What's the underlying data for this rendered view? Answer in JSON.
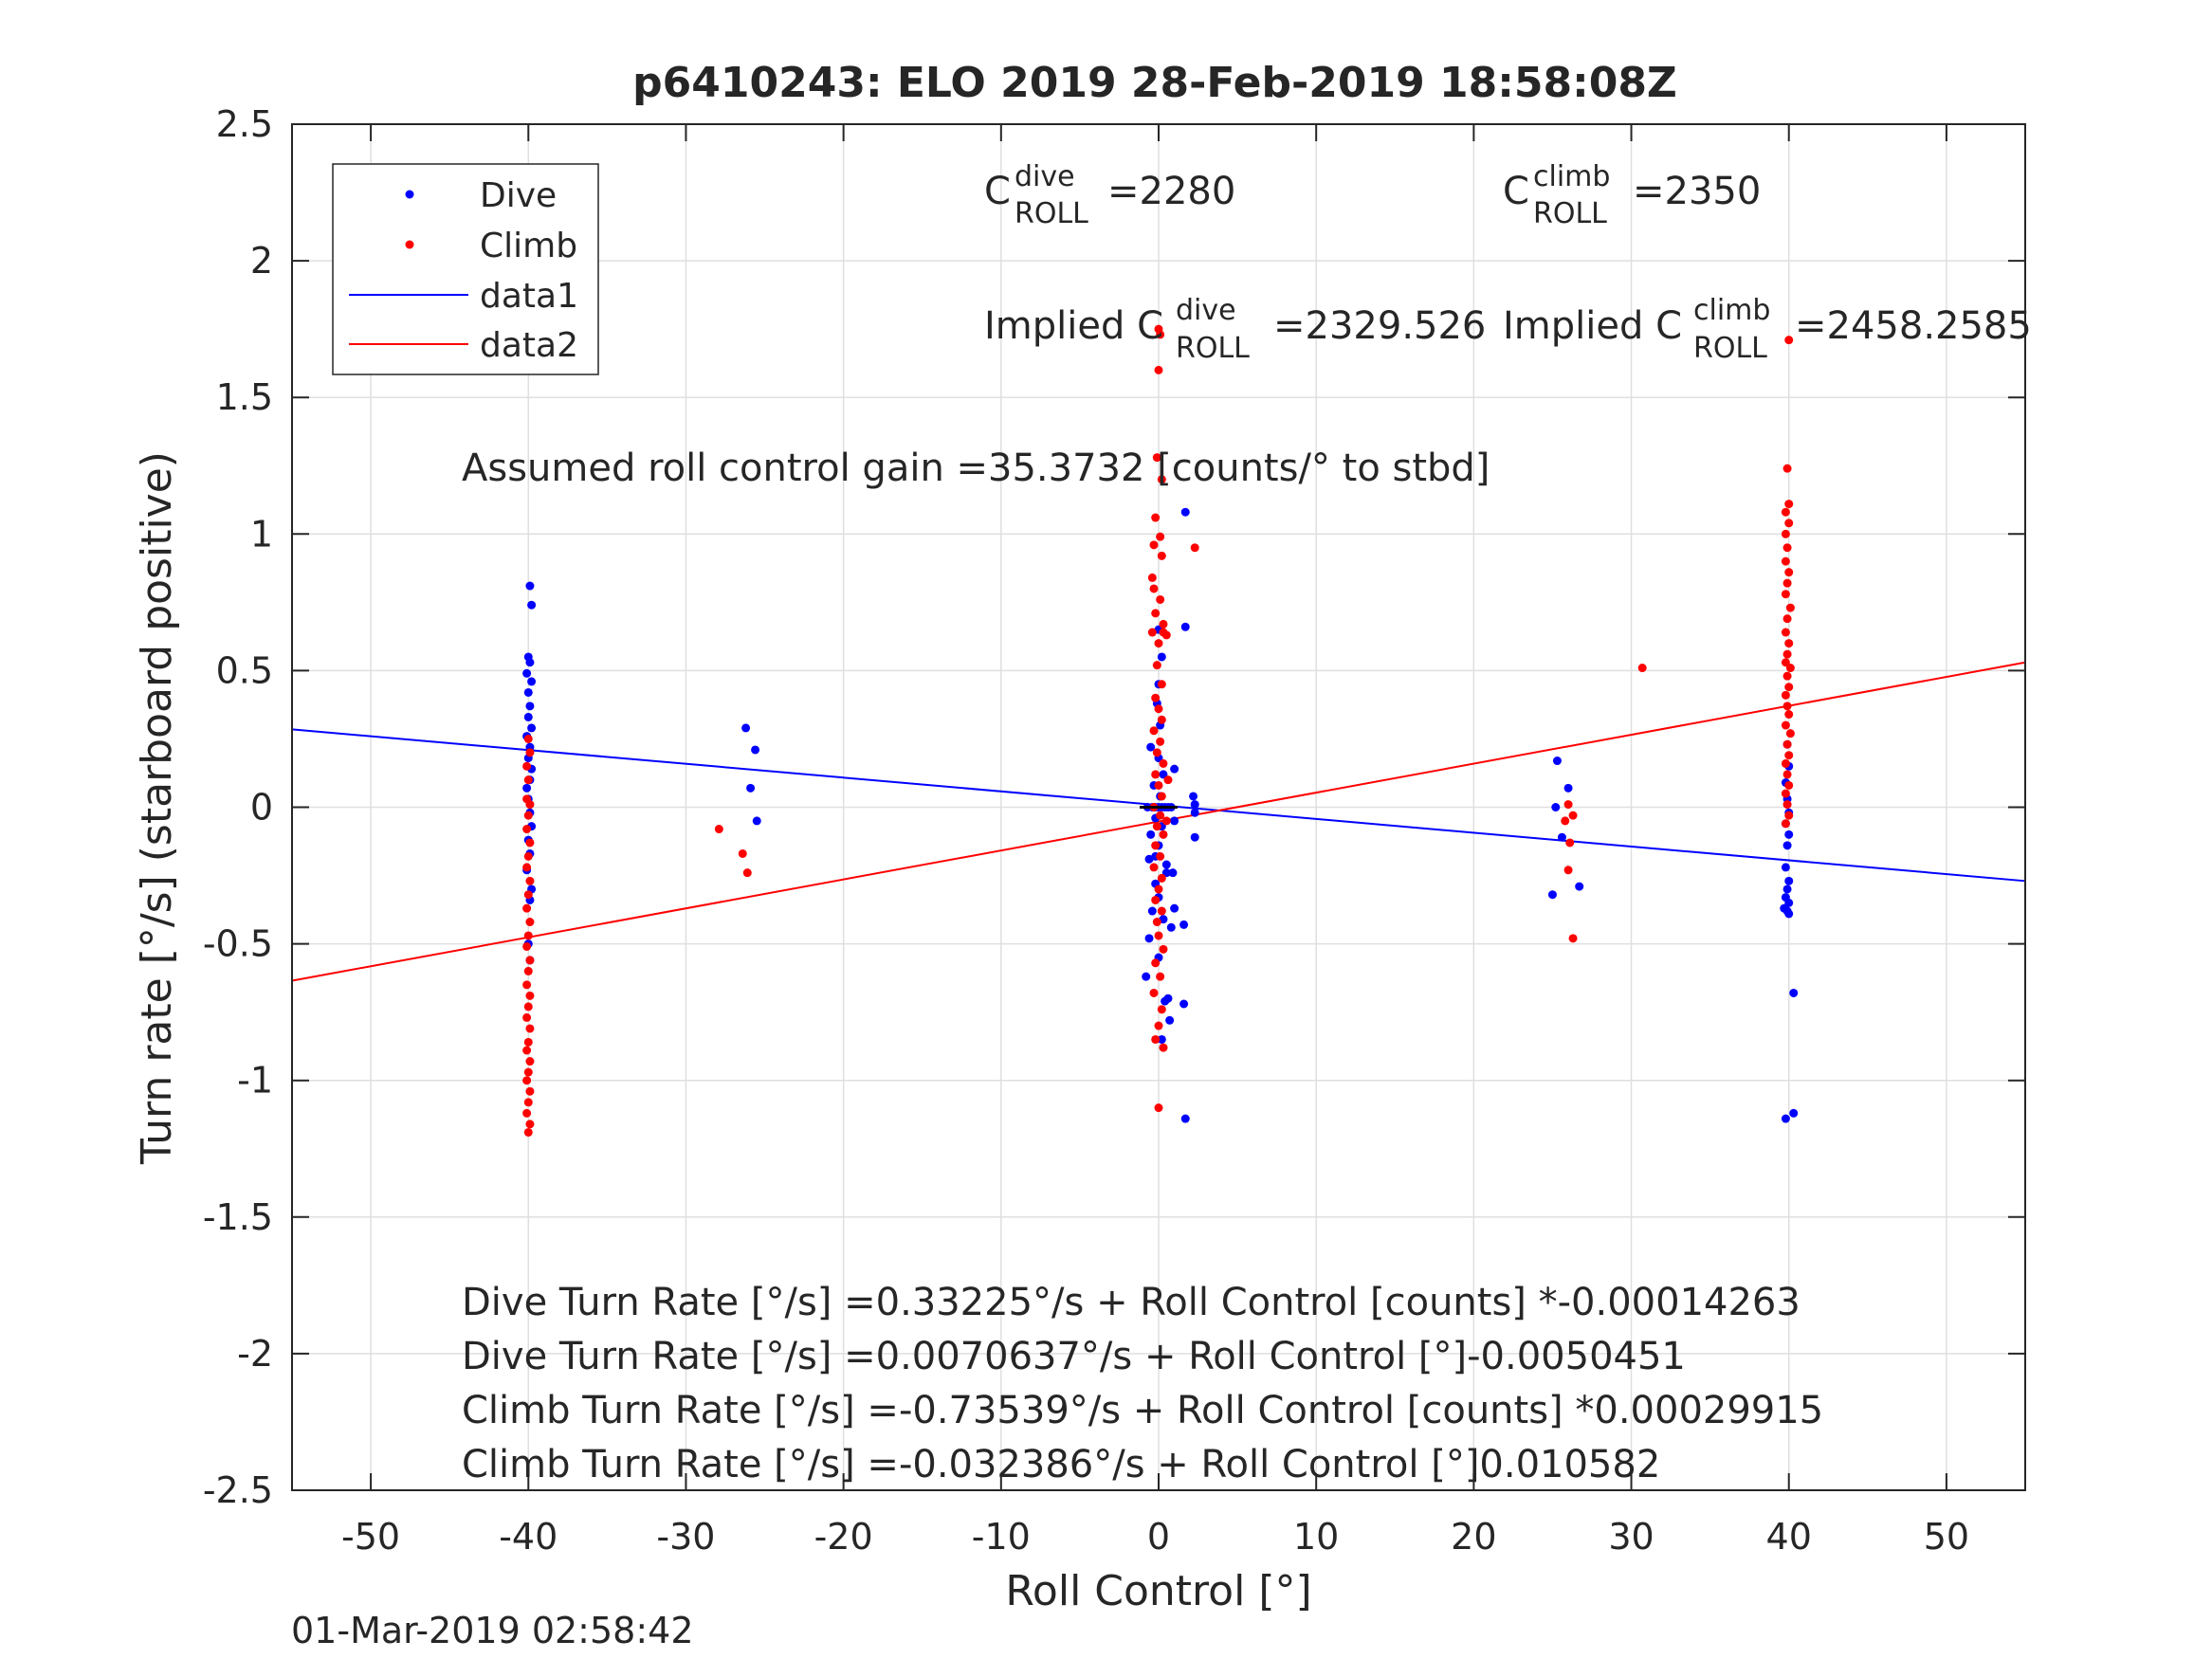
{
  "chart_data": {
    "type": "scatter",
    "title": "p6410243: ELO 2019 28-Feb-2019 18:58:08Z",
    "xlabel": "Roll Control [°]",
    "ylabel": "Turn rate [°/s] (starboard positive)",
    "xlim": [
      -55,
      55
    ],
    "ylim": [
      -2.5,
      2.5
    ],
    "xticks": [
      -50,
      -40,
      -30,
      -20,
      -10,
      0,
      10,
      20,
      30,
      40,
      50
    ],
    "xtick_labels": [
      "-50",
      "-40",
      "-30",
      "-20",
      "-10",
      "0",
      "10",
      "20",
      "30",
      "40",
      "50"
    ],
    "yticks": [
      2.5,
      2,
      1.5,
      1,
      0.5,
      0,
      -0.5,
      -1,
      -1.5,
      -2,
      -2.5
    ],
    "ytick_labels": [
      "2.5",
      "2",
      "1.5",
      "1",
      "0.5",
      "0",
      "-0.5",
      "-1",
      "-1.5",
      "-2",
      "-2.5"
    ],
    "grid": true,
    "legend_position": "top-left",
    "legend": [
      "Dive",
      "Climb",
      "data1",
      "data2"
    ],
    "colors": {
      "dive": "#0000ff",
      "climb": "#ff0000",
      "axis": "#262626",
      "grid": "#dfdfdf"
    },
    "series": [
      {
        "name": "Dive",
        "kind": "points",
        "color": "#0000ff",
        "points": [
          [
            -39.9,
            0.81
          ],
          [
            -39.8,
            0.74
          ],
          [
            -40.0,
            0.55
          ],
          [
            -39.9,
            0.53
          ],
          [
            -40.1,
            0.49
          ],
          [
            -39.8,
            0.46
          ],
          [
            -40.0,
            0.42
          ],
          [
            -39.9,
            0.37
          ],
          [
            -40.0,
            0.33
          ],
          [
            -39.8,
            0.29
          ],
          [
            -40.1,
            0.26
          ],
          [
            -39.9,
            0.22
          ],
          [
            -40.0,
            0.18
          ],
          [
            -39.8,
            0.14
          ],
          [
            -39.9,
            0.1
          ],
          [
            -40.1,
            0.07
          ],
          [
            -40.0,
            0.03
          ],
          [
            -39.9,
            -0.02
          ],
          [
            -39.8,
            -0.07
          ],
          [
            -40.0,
            -0.12
          ],
          [
            -39.9,
            -0.17
          ],
          [
            -40.1,
            -0.23
          ],
          [
            -39.8,
            -0.3
          ],
          [
            -39.9,
            -0.34
          ],
          [
            -40.0,
            -0.5
          ],
          [
            -39.9,
            -0.56
          ],
          [
            -26.2,
            0.29
          ],
          [
            -25.6,
            0.21
          ],
          [
            -25.9,
            0.07
          ],
          [
            -25.5,
            -0.05
          ],
          [
            0.0,
            0.65
          ],
          [
            0.2,
            0.55
          ],
          [
            0.0,
            0.45
          ],
          [
            -0.1,
            0.38
          ],
          [
            0.1,
            0.3
          ],
          [
            -0.5,
            0.22
          ],
          [
            0.0,
            0.18
          ],
          [
            0.3,
            0.12
          ],
          [
            -0.3,
            0.08
          ],
          [
            0.1,
            0.04
          ],
          [
            -0.7,
            0.0
          ],
          [
            -0.4,
            0.0
          ],
          [
            -0.2,
            0.0
          ],
          [
            0.0,
            0.0
          ],
          [
            0.2,
            0.0
          ],
          [
            0.4,
            0.0
          ],
          [
            0.6,
            0.0
          ],
          [
            0.8,
            0.0
          ],
          [
            -0.2,
            -0.04
          ],
          [
            0.2,
            -0.07
          ],
          [
            -0.5,
            -0.1
          ],
          [
            0.0,
            -0.14
          ],
          [
            -0.2,
            -0.18
          ],
          [
            0.5,
            -0.21
          ],
          [
            -0.6,
            -0.19
          ],
          [
            0.9,
            -0.24
          ],
          [
            -0.2,
            -0.28
          ],
          [
            0.0,
            -0.33
          ],
          [
            -0.4,
            -0.38
          ],
          [
            0.3,
            -0.41
          ],
          [
            -0.6,
            -0.48
          ],
          [
            0.0,
            -0.55
          ],
          [
            -0.8,
            -0.62
          ],
          [
            0.4,
            -0.71
          ],
          [
            0.7,
            -0.78
          ],
          [
            0.2,
            -0.85
          ],
          [
            1.0,
            0.14
          ],
          [
            1.7,
            1.08
          ],
          [
            1.7,
            0.66
          ],
          [
            2.2,
            0.04
          ],
          [
            2.3,
            0.01
          ],
          [
            2.3,
            -0.02
          ],
          [
            2.3,
            -0.11
          ],
          [
            1.6,
            -0.43
          ],
          [
            1.0,
            -0.37
          ],
          [
            0.8,
            -0.44
          ],
          [
            1.6,
            -0.72
          ],
          [
            0.6,
            -0.7
          ],
          [
            1.7,
            -1.14
          ],
          [
            1.0,
            -0.05
          ],
          [
            0.5,
            -0.24
          ],
          [
            25.3,
            0.17
          ],
          [
            25.2,
            0.0
          ],
          [
            26.0,
            0.07
          ],
          [
            25.6,
            -0.11
          ],
          [
            26.7,
            -0.29
          ],
          [
            25.0,
            -0.32
          ],
          [
            39.9,
            0.23
          ],
          [
            40.0,
            0.15
          ],
          [
            39.8,
            0.09
          ],
          [
            39.9,
            0.03
          ],
          [
            40.0,
            -0.02
          ],
          [
            39.8,
            -0.06
          ],
          [
            40.0,
            -0.1
          ],
          [
            39.9,
            -0.14
          ],
          [
            39.8,
            -0.22
          ],
          [
            40.0,
            -0.27
          ],
          [
            39.9,
            -0.3
          ],
          [
            39.8,
            -0.33
          ],
          [
            40.0,
            -0.35
          ],
          [
            39.9,
            -0.38
          ],
          [
            39.7,
            -0.37
          ],
          [
            40.0,
            -0.39
          ],
          [
            40.3,
            -0.68
          ],
          [
            39.8,
            -1.14
          ],
          [
            40.3,
            -1.12
          ]
        ]
      },
      {
        "name": "Climb",
        "kind": "points",
        "color": "#ff0000",
        "points": [
          [
            -40.0,
            0.25
          ],
          [
            -39.9,
            0.2
          ],
          [
            -40.1,
            0.15
          ],
          [
            -40.0,
            0.1
          ],
          [
            -40.1,
            0.03
          ],
          [
            -39.9,
            0.01
          ],
          [
            -40.0,
            -0.03
          ],
          [
            -40.1,
            -0.08
          ],
          [
            -39.9,
            -0.13
          ],
          [
            -40.0,
            -0.18
          ],
          [
            -40.1,
            -0.22
          ],
          [
            -39.9,
            -0.27
          ],
          [
            -40.0,
            -0.32
          ],
          [
            -40.1,
            -0.37
          ],
          [
            -39.9,
            -0.42
          ],
          [
            -40.0,
            -0.47
          ],
          [
            -40.1,
            -0.51
          ],
          [
            -39.9,
            -0.56
          ],
          [
            -40.0,
            -0.6
          ],
          [
            -40.1,
            -0.65
          ],
          [
            -39.9,
            -0.69
          ],
          [
            -40.0,
            -0.73
          ],
          [
            -40.1,
            -0.77
          ],
          [
            -39.9,
            -0.81
          ],
          [
            -40.0,
            -0.86
          ],
          [
            -40.1,
            -0.89
          ],
          [
            -39.9,
            -0.93
          ],
          [
            -40.0,
            -0.97
          ],
          [
            -40.1,
            -1.0
          ],
          [
            -39.9,
            -1.04
          ],
          [
            -40.0,
            -1.08
          ],
          [
            -40.1,
            -1.12
          ],
          [
            -39.9,
            -1.16
          ],
          [
            -40.0,
            -1.19
          ],
          [
            -27.9,
            -0.08
          ],
          [
            -26.4,
            -0.17
          ],
          [
            -26.1,
            -0.24
          ],
          [
            0.0,
            1.75
          ],
          [
            0.1,
            1.73
          ],
          [
            0.0,
            1.6
          ],
          [
            -0.1,
            1.28
          ],
          [
            0.2,
            1.2
          ],
          [
            -0.2,
            1.06
          ],
          [
            0.1,
            0.99
          ],
          [
            -0.3,
            0.96
          ],
          [
            0.2,
            0.92
          ],
          [
            -0.4,
            0.84
          ],
          [
            -0.3,
            0.8
          ],
          [
            0.1,
            0.76
          ],
          [
            -0.2,
            0.71
          ],
          [
            0.3,
            0.67
          ],
          [
            -0.4,
            0.64
          ],
          [
            0.0,
            0.6
          ],
          [
            0.3,
            0.64
          ],
          [
            0.5,
            0.63
          ],
          [
            -0.1,
            0.52
          ],
          [
            0.2,
            0.45
          ],
          [
            -0.2,
            0.4
          ],
          [
            0.0,
            0.36
          ],
          [
            0.2,
            0.32
          ],
          [
            -0.3,
            0.28
          ],
          [
            0.1,
            0.24
          ],
          [
            -0.1,
            0.2
          ],
          [
            0.3,
            0.16
          ],
          [
            -0.2,
            0.12
          ],
          [
            0.0,
            0.08
          ],
          [
            0.2,
            0.04
          ],
          [
            -0.3,
            0.0
          ],
          [
            0.1,
            -0.03
          ],
          [
            -0.1,
            -0.07
          ],
          [
            0.3,
            -0.1
          ],
          [
            -0.2,
            -0.14
          ],
          [
            0.1,
            -0.18
          ],
          [
            -0.3,
            -0.22
          ],
          [
            0.2,
            -0.26
          ],
          [
            0.0,
            -0.3
          ],
          [
            -0.2,
            -0.34
          ],
          [
            0.2,
            -0.38
          ],
          [
            -0.1,
            -0.42
          ],
          [
            0.0,
            -0.47
          ],
          [
            0.3,
            -0.52
          ],
          [
            -0.2,
            -0.57
          ],
          [
            0.1,
            -0.62
          ],
          [
            -0.3,
            -0.68
          ],
          [
            0.2,
            -0.74
          ],
          [
            0.0,
            -0.8
          ],
          [
            -0.2,
            -0.85
          ],
          [
            0.3,
            -0.88
          ],
          [
            0.0,
            -1.1
          ],
          [
            2.3,
            0.95
          ],
          [
            0.5,
            -0.05
          ],
          [
            0.6,
            0.1
          ],
          [
            25.8,
            -0.05
          ],
          [
            26.0,
            0.01
          ],
          [
            26.3,
            -0.03
          ],
          [
            26.1,
            -0.13
          ],
          [
            26.0,
            -0.23
          ],
          [
            26.3,
            -0.48
          ],
          [
            30.7,
            0.51
          ],
          [
            40.0,
            1.71
          ],
          [
            39.9,
            1.24
          ],
          [
            40.0,
            1.11
          ],
          [
            39.8,
            1.08
          ],
          [
            40.0,
            1.04
          ],
          [
            39.8,
            1.0
          ],
          [
            39.9,
            0.95
          ],
          [
            39.8,
            0.9
          ],
          [
            40.0,
            0.86
          ],
          [
            39.9,
            0.82
          ],
          [
            39.8,
            0.78
          ],
          [
            40.1,
            0.73
          ],
          [
            39.9,
            0.69
          ],
          [
            39.8,
            0.64
          ],
          [
            40.0,
            0.6
          ],
          [
            39.9,
            0.56
          ],
          [
            39.8,
            0.53
          ],
          [
            40.1,
            0.51
          ],
          [
            39.9,
            0.48
          ],
          [
            40.0,
            0.44
          ],
          [
            39.8,
            0.41
          ],
          [
            39.9,
            0.37
          ],
          [
            40.0,
            0.34
          ],
          [
            39.8,
            0.3
          ],
          [
            40.1,
            0.27
          ],
          [
            39.9,
            0.23
          ],
          [
            40.0,
            0.19
          ],
          [
            39.8,
            0.16
          ],
          [
            39.9,
            0.12
          ],
          [
            40.0,
            0.08
          ],
          [
            39.8,
            0.05
          ],
          [
            39.9,
            0.01
          ],
          [
            40.0,
            -0.03
          ],
          [
            39.8,
            -0.06
          ]
        ]
      },
      {
        "name": "data1",
        "kind": "line",
        "color": "#0000ff",
        "points": [
          [
            -55,
            0.285
          ],
          [
            55,
            -0.27
          ]
        ]
      },
      {
        "name": "data2",
        "kind": "line",
        "color": "#ff0000",
        "points": [
          [
            -55,
            -0.635
          ],
          [
            55,
            0.53
          ]
        ]
      }
    ],
    "annotations": {
      "cdive_base": "C",
      "cdive_sup": "dive",
      "cdive_sub": "ROLL",
      "cdive_val": "=2280",
      "cclimb_base": "C",
      "cclimb_sup": "climb",
      "cclimb_sub": "ROLL",
      "cclimb_val": "=2350",
      "implied_dive_prefix": "Implied C",
      "implied_dive_sup": "dive",
      "implied_dive_sub": "ROLL",
      "implied_dive_val": "=2329.526",
      "implied_climb_prefix": "Implied C",
      "implied_climb_sup": "climb",
      "implied_climb_sub": "ROLL",
      "implied_climb_val": "=2458.2585",
      "gain": "Assumed roll control gain =35.3732 [counts/° to stbd]",
      "eq1": "Dive Turn Rate [°/s] =0.33225°/s + Roll Control [counts] *-0.00014263",
      "eq2": "Dive Turn Rate [°/s] =0.0070637°/s + Roll Control [°]-0.0050451",
      "eq3": "Climb Turn Rate [°/s] =-0.73539°/s + Roll Control [counts] *0.00029915",
      "eq4": "Climb Turn Rate [°/s] =-0.032386°/s + Roll Control [°]0.010582"
    }
  },
  "footer": {
    "timestamp": "01-Mar-2019 02:58:42"
  }
}
